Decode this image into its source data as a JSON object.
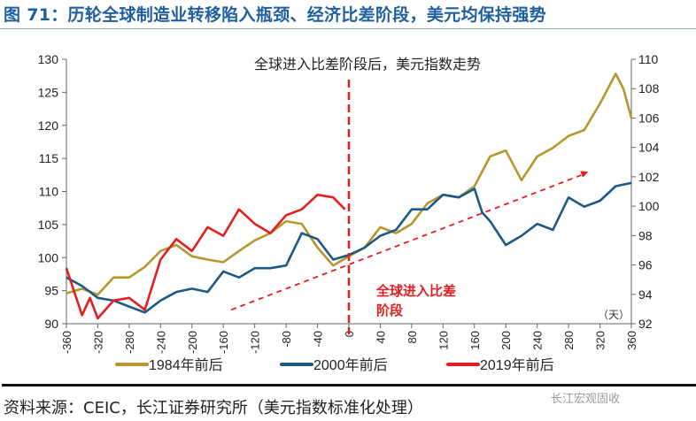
{
  "title": "图 71：历轮全球制造业转移陷入瓶颈、经济比差阶段，美元均保持强势",
  "source": "资料来源：CEIC，长江证券研究所（美元指数标准化处理）",
  "watermark": "长江宏观固收",
  "chart_data": {
    "type": "line",
    "title": "全球进入比差阶段后，美元指数走势",
    "annotation": [
      "全球进入比差",
      "阶段"
    ],
    "x_unit": "（天）",
    "xlim": [
      -360,
      360
    ],
    "ylim_left": [
      90,
      130
    ],
    "ylim_right": [
      92,
      110
    ],
    "x_ticks": [
      "-360",
      "-320",
      "-280",
      "-240",
      "-200",
      "-160",
      "-120",
      "-80",
      "-40",
      "0",
      "40",
      "80",
      "120",
      "160",
      "200",
      "240",
      "280",
      "320",
      "360"
    ],
    "y_ticks_left": [
      "90",
      "95",
      "100",
      "105",
      "110",
      "115",
      "120",
      "125",
      "130"
    ],
    "y_ticks_right": [
      "92",
      "94",
      "96",
      "98",
      "100",
      "102",
      "104",
      "106",
      "108",
      "110"
    ],
    "vertical_marker_x": 0,
    "trend_arrow": {
      "from": [
        -150,
        92.1
      ],
      "to": [
        305,
        113.0
      ]
    },
    "legend_position": "bottom",
    "series": [
      {
        "name": "1984年前后",
        "color": "#b8962e",
        "x": [
          -360,
          -340,
          -320,
          -300,
          -280,
          -260,
          -240,
          -220,
          -200,
          -180,
          -160,
          -140,
          -120,
          -100,
          -80,
          -60,
          -40,
          -20,
          0,
          20,
          40,
          60,
          80,
          100,
          120,
          140,
          160,
          180,
          200,
          220,
          240,
          260,
          280,
          300,
          320,
          340,
          350,
          360
        ],
        "y": [
          94.6,
          95.3,
          94.4,
          97.0,
          97.0,
          98.6,
          101.0,
          101.9,
          100.2,
          99.7,
          99.3,
          101.0,
          102.6,
          103.7,
          105.5,
          105.1,
          101.5,
          98.8,
          100.2,
          101.5,
          104.6,
          103.7,
          105.1,
          108.2,
          109.5,
          109.1,
          110.8,
          115.3,
          116.2,
          111.7,
          115.3,
          116.6,
          118.4,
          119.3,
          123.3,
          127.8,
          125.5,
          121.1
        ]
      },
      {
        "name": "2000年前后",
        "color": "#1b5a84",
        "x": [
          -360,
          -340,
          -320,
          -300,
          -280,
          -260,
          -240,
          -220,
          -200,
          -180,
          -160,
          -140,
          -120,
          -100,
          -80,
          -60,
          -40,
          -20,
          0,
          20,
          40,
          60,
          80,
          100,
          120,
          140,
          160,
          170,
          180,
          200,
          220,
          240,
          260,
          280,
          300,
          320,
          340,
          360
        ],
        "y": [
          97.0,
          95.7,
          93.9,
          93.5,
          92.6,
          91.7,
          93.5,
          94.8,
          95.3,
          94.8,
          97.9,
          97.0,
          98.4,
          98.4,
          98.8,
          103.7,
          102.8,
          99.7,
          100.4,
          101.5,
          103.3,
          104.2,
          107.3,
          107.3,
          109.5,
          109.1,
          110.4,
          106.8,
          105.5,
          101.9,
          103.3,
          105.1,
          104.2,
          109.1,
          107.7,
          108.6,
          110.8,
          111.3
        ]
      },
      {
        "name": "2019年前后",
        "color": "#e41e1e",
        "x": [
          -360,
          -350,
          -340,
          -330,
          -320,
          -300,
          -280,
          -260,
          -240,
          -220,
          -200,
          -180,
          -160,
          -140,
          -120,
          -100,
          -80,
          -60,
          -40,
          -20,
          -5
        ],
        "y": [
          98.4,
          94.8,
          91.3,
          93.9,
          90.8,
          93.5,
          93.9,
          92.1,
          99.7,
          102.8,
          101.0,
          104.6,
          103.3,
          107.3,
          105.1,
          103.7,
          106.4,
          107.3,
          109.5,
          109.1,
          107.3
        ]
      }
    ]
  }
}
